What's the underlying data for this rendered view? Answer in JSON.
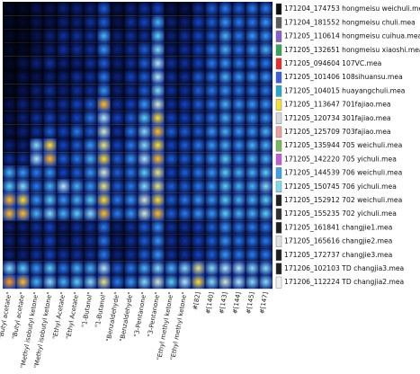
{
  "chart_data": {
    "type": "heatmap",
    "colormap": [
      "#000000",
      "#0a1a6e",
      "#1546c8",
      "#2f8cff",
      "#5fd2ff",
      "#c8f0ff",
      "#ffe040",
      "#ff8a1a",
      "#e01818"
    ],
    "columns": [
      {
        "label": "\"Butyl acetate\"",
        "group": "Butyl acetate"
      },
      {
        "label": "\"Butyl acetate\"",
        "group": "Butyl acetate"
      },
      {
        "label": "\"Methyl isobutyl ketone\"",
        "group": "Methyl isobutyl ketone"
      },
      {
        "label": "\"Methyl isobutyl ketone\"",
        "group": "Methyl isobutyl ketone"
      },
      {
        "label": "\"Ethyl Acetate\"",
        "group": "Ethyl Acetate"
      },
      {
        "label": "\"Ethyl Acetate\"",
        "group": "Ethyl Acetate"
      },
      {
        "label": "\"1-Butanol\"",
        "group": "1-Butanol"
      },
      {
        "label": "\"1-Butanol\"",
        "group": "1-Butanol"
      },
      {
        "label": "\"Benzaldehyde\"",
        "group": "Benzaldehyde"
      },
      {
        "label": "\"Benzaldehyde\"",
        "group": "Benzaldehyde"
      },
      {
        "label": "\"3-Pentanone\"",
        "group": "3-Pentanone"
      },
      {
        "label": "\"3-Pentanone\"",
        "group": "3-Pentanone"
      },
      {
        "label": "\"Ethyl methyl ketone\"",
        "group": "Ethyl methyl ketone"
      },
      {
        "label": "\"Ethyl methyl ketone\"",
        "group": "Ethyl methyl ketone"
      },
      {
        "label": "#[82]",
        "group": "#[82]"
      },
      {
        "label": "#[140]",
        "group": "#[140]"
      },
      {
        "label": "#[143]",
        "group": "#[143]"
      },
      {
        "label": "#[144]",
        "group": "#[144]"
      },
      {
        "label": "#[145]",
        "group": "#[145]"
      },
      {
        "label": "#[147]",
        "group": "#[147]"
      }
    ],
    "rows": [
      {
        "label": "171204_174753 hongmeisu weichuli.mea",
        "swatch": "#111111"
      },
      {
        "label": "171204_181552 hongmeisu chuli.mea",
        "swatch": "#5a5a5a"
      },
      {
        "label": "171205_110614 hongmeisu cuihua.mea",
        "swatch": "#8a5fc8"
      },
      {
        "label": "171205_132651 hongmeisu xiaoshi.mea",
        "swatch": "#3aa55a"
      },
      {
        "label": "171205_094604 107VC.mea",
        "swatch": "#e03030"
      },
      {
        "label": "171205_101406 108sihuansu.mea",
        "swatch": "#3f5fd8"
      },
      {
        "label": "171205_104015 huayangchuli.mea",
        "swatch": "#2aa8c8"
      },
      {
        "label": "171205_113647 701fajiao.mea",
        "swatch": "#f0e040"
      },
      {
        "label": "171205_120734 301fajiao.mea",
        "swatch": "#d8d8d8"
      },
      {
        "label": "171205_125709 703fajiao.mea",
        "swatch": "#e8a0a0"
      },
      {
        "label": "171205_135944 705 weichuli.mea",
        "swatch": "#7ab85a"
      },
      {
        "label": "171205_142220 705 yichuli.mea",
        "swatch": "#c060d0"
      },
      {
        "label": "171205_144539 706 weichuli.mea",
        "swatch": "#40a0e0"
      },
      {
        "label": "171205_150745 706 yichuli.mea",
        "swatch": "#80d8e8"
      },
      {
        "label": "171205_152912 702 weichuli.mea",
        "swatch": "#202020"
      },
      {
        "label": "171205_155235 702 yichuli.mea",
        "swatch": "#303030"
      },
      {
        "label": "171205_161841 changjie1.mea",
        "swatch": "#202020"
      },
      {
        "label": "171205_165616 changjie2.mea",
        "swatch": "#e0e0e0"
      },
      {
        "label": "171205_172737 changjie3.mea",
        "swatch": "#202020"
      },
      {
        "label": "171206_102103 TD changjia3.mea",
        "swatch": "#202020"
      },
      {
        "label": "171206_112224 TD changjia2.mea",
        "swatch": "#f0f0f0"
      }
    ],
    "values": [
      [
        0.05,
        0.05,
        0.1,
        0.1,
        0.15,
        0.15,
        0.15,
        0.3,
        0.1,
        0.15,
        0.2,
        0.25,
        0.1,
        0.1,
        0.2,
        0.3,
        0.35,
        0.3,
        0.35,
        0.35
      ],
      [
        0.05,
        0.05,
        0.1,
        0.1,
        0.15,
        0.15,
        0.2,
        0.3,
        0.1,
        0.2,
        0.25,
        0.45,
        0.15,
        0.15,
        0.25,
        0.3,
        0.4,
        0.35,
        0.35,
        0.4
      ],
      [
        0.05,
        0.05,
        0.1,
        0.15,
        0.2,
        0.2,
        0.2,
        0.45,
        0.15,
        0.2,
        0.2,
        0.5,
        0.15,
        0.2,
        0.25,
        0.3,
        0.45,
        0.35,
        0.4,
        0.4
      ],
      [
        0.05,
        0.05,
        0.1,
        0.15,
        0.2,
        0.2,
        0.2,
        0.4,
        0.15,
        0.2,
        0.3,
        0.55,
        0.15,
        0.2,
        0.25,
        0.35,
        0.45,
        0.35,
        0.4,
        0.45
      ],
      [
        0.05,
        0.1,
        0.15,
        0.2,
        0.15,
        0.15,
        0.2,
        0.3,
        0.15,
        0.2,
        0.3,
        0.6,
        0.2,
        0.2,
        0.25,
        0.35,
        0.4,
        0.35,
        0.35,
        0.35
      ],
      [
        0.05,
        0.1,
        0.1,
        0.15,
        0.15,
        0.2,
        0.2,
        0.35,
        0.15,
        0.25,
        0.3,
        0.6,
        0.2,
        0.2,
        0.3,
        0.35,
        0.45,
        0.4,
        0.4,
        0.4
      ],
      [
        0.05,
        0.1,
        0.15,
        0.2,
        0.15,
        0.2,
        0.2,
        0.4,
        0.15,
        0.2,
        0.3,
        0.55,
        0.2,
        0.2,
        0.3,
        0.35,
        0.4,
        0.35,
        0.35,
        0.35
      ],
      [
        0.1,
        0.15,
        0.15,
        0.2,
        0.2,
        0.25,
        0.3,
        0.8,
        0.2,
        0.25,
        0.4,
        0.65,
        0.2,
        0.25,
        0.3,
        0.35,
        0.45,
        0.4,
        0.4,
        0.4
      ],
      [
        0.1,
        0.15,
        0.2,
        0.25,
        0.2,
        0.25,
        0.35,
        0.6,
        0.25,
        0.3,
        0.5,
        0.75,
        0.25,
        0.25,
        0.3,
        0.35,
        0.45,
        0.4,
        0.4,
        0.4
      ],
      [
        0.1,
        0.15,
        0.2,
        0.3,
        0.25,
        0.35,
        0.3,
        0.65,
        0.2,
        0.35,
        0.55,
        0.8,
        0.3,
        0.3,
        0.3,
        0.4,
        0.45,
        0.4,
        0.4,
        0.45
      ],
      [
        0.15,
        0.15,
        0.55,
        0.75,
        0.25,
        0.3,
        0.4,
        0.7,
        0.25,
        0.35,
        0.55,
        0.75,
        0.25,
        0.3,
        0.35,
        0.4,
        0.45,
        0.4,
        0.45,
        0.45
      ],
      [
        0.2,
        0.2,
        0.6,
        0.8,
        0.3,
        0.35,
        0.45,
        0.75,
        0.3,
        0.4,
        0.6,
        0.8,
        0.3,
        0.3,
        0.35,
        0.4,
        0.5,
        0.4,
        0.45,
        0.45
      ],
      [
        0.45,
        0.4,
        0.35,
        0.4,
        0.25,
        0.3,
        0.4,
        0.65,
        0.3,
        0.35,
        0.5,
        0.7,
        0.25,
        0.3,
        0.35,
        0.4,
        0.5,
        0.45,
        0.45,
        0.5
      ],
      [
        0.5,
        0.55,
        0.35,
        0.45,
        0.6,
        0.45,
        0.4,
        0.7,
        0.3,
        0.35,
        0.55,
        0.7,
        0.3,
        0.3,
        0.35,
        0.4,
        0.5,
        0.45,
        0.45,
        0.55
      ],
      [
        0.8,
        0.75,
        0.4,
        0.5,
        0.4,
        0.45,
        0.5,
        0.75,
        0.35,
        0.4,
        0.65,
        0.75,
        0.3,
        0.35,
        0.4,
        0.4,
        0.5,
        0.45,
        0.45,
        0.5
      ],
      [
        0.8,
        0.8,
        0.45,
        0.55,
        0.45,
        0.5,
        0.55,
        0.8,
        0.35,
        0.4,
        0.65,
        0.8,
        0.3,
        0.35,
        0.4,
        0.4,
        0.5,
        0.45,
        0.45,
        0.5
      ],
      [
        0.15,
        0.15,
        0.2,
        0.25,
        0.15,
        0.2,
        0.2,
        0.35,
        0.15,
        0.2,
        0.3,
        0.4,
        0.2,
        0.2,
        0.25,
        0.3,
        0.4,
        0.35,
        0.35,
        0.35
      ],
      [
        0.15,
        0.15,
        0.2,
        0.25,
        0.15,
        0.2,
        0.2,
        0.35,
        0.15,
        0.2,
        0.3,
        0.4,
        0.2,
        0.2,
        0.25,
        0.3,
        0.4,
        0.35,
        0.35,
        0.35
      ],
      [
        0.15,
        0.15,
        0.2,
        0.25,
        0.2,
        0.2,
        0.2,
        0.35,
        0.15,
        0.2,
        0.3,
        0.4,
        0.2,
        0.2,
        0.25,
        0.3,
        0.4,
        0.35,
        0.35,
        0.35
      ],
      [
        0.55,
        0.5,
        0.4,
        0.5,
        0.35,
        0.45,
        0.45,
        0.6,
        0.3,
        0.35,
        0.45,
        0.55,
        0.45,
        0.55,
        0.7,
        0.55,
        0.6,
        0.6,
        0.55,
        0.55
      ],
      [
        0.85,
        0.8,
        0.45,
        0.55,
        0.45,
        0.5,
        0.55,
        0.7,
        0.35,
        0.4,
        0.55,
        0.65,
        0.5,
        0.6,
        0.75,
        0.55,
        0.65,
        0.6,
        0.55,
        0.55
      ]
    ]
  }
}
